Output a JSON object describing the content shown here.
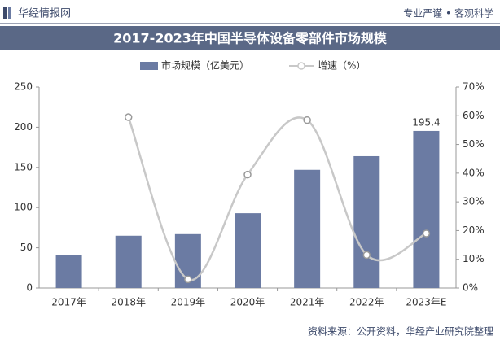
{
  "header": {
    "brand": "华经情报网",
    "slogan": "专业严谨 • 客观科学"
  },
  "chart_data": {
    "type": "bar-line",
    "title": "2017-2023年中国半导体设备零部件市场规模",
    "categories": [
      "2017年",
      "2018年",
      "2019年",
      "2020年",
      "2021年",
      "2022年",
      "2023年E"
    ],
    "series": [
      {
        "name": "市场规模（亿美元）",
        "color": "#6b7ba3",
        "values": [
          41,
          65,
          67,
          93,
          147,
          164,
          195.4
        ],
        "value_labels": [
          null,
          null,
          null,
          null,
          null,
          null,
          "195.4"
        ]
      },
      {
        "name": "增速（%）",
        "color": "#c8c8c8",
        "values": [
          null,
          59.5,
          3,
          39.5,
          58.5,
          11.5,
          19
        ],
        "axis": "y2"
      }
    ],
    "ylim": [
      0,
      250
    ],
    "yticks": [
      0,
      50,
      100,
      150,
      200,
      250
    ],
    "y2lim": [
      0,
      70
    ],
    "y2ticks": [
      {
        "value": 0,
        "label": "0%"
      },
      {
        "value": 10,
        "label": "10%"
      },
      {
        "value": 20,
        "label": "20%"
      },
      {
        "value": 30,
        "label": "30%"
      },
      {
        "value": 40,
        "label": "40%"
      },
      {
        "value": 50,
        "label": "50%"
      },
      {
        "value": 60,
        "label": "60%"
      },
      {
        "value": 70,
        "label": "70%"
      }
    ],
    "grid": false,
    "legend": "top"
  },
  "source": "资料来源：公开资料，华经产业研究院整理"
}
